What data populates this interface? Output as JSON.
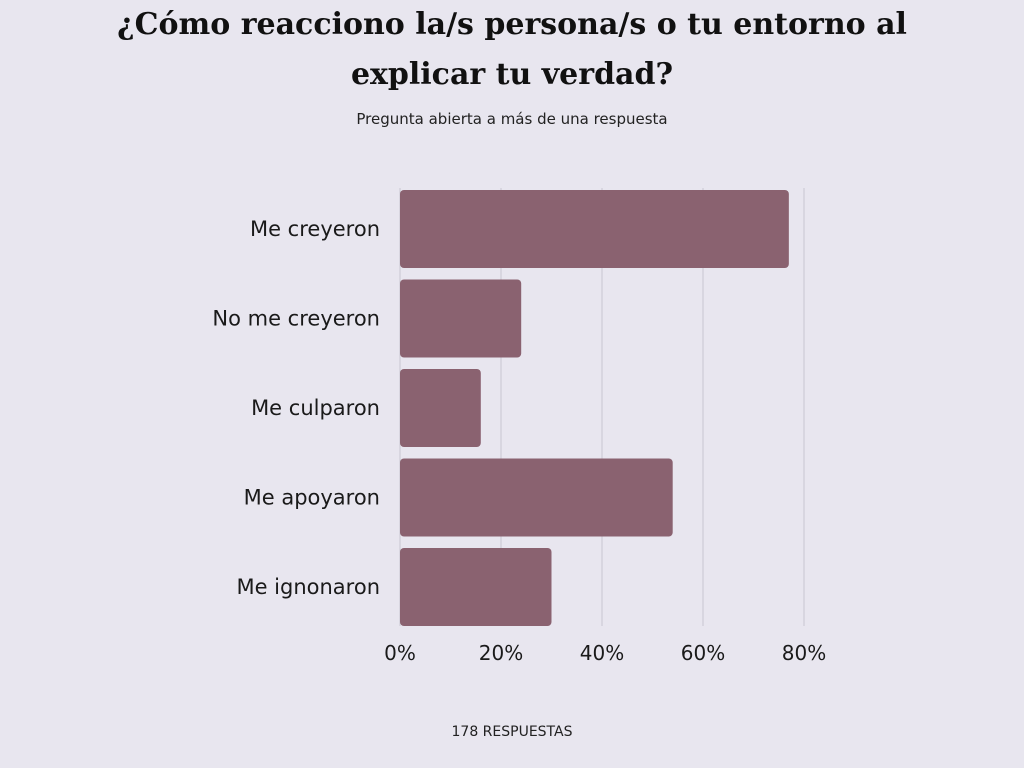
{
  "title": "¿Cómo reacciono la/s persona/s o tu entorno al explicar tu verdad?",
  "subtitle": "Pregunta abierta a más de una respuesta",
  "footer": "178 RESPUESTAS",
  "chart_data": {
    "type": "bar",
    "orientation": "horizontal",
    "title": "¿Cómo reacciono la/s persona/s o tu entorno al explicar tu verdad?",
    "subtitle": "Pregunta abierta a más de una respuesta",
    "categories": [
      "Me creyeron",
      "No me creyeron",
      "Me culparon",
      "Me apoyaron",
      "Me ignonaron"
    ],
    "values": [
      77,
      24,
      16,
      54,
      30
    ],
    "unit": "%",
    "xlim": [
      0,
      80
    ],
    "ticks": [
      0,
      20,
      40,
      60,
      80
    ],
    "tick_labels": [
      "0%",
      "20%",
      "40%",
      "60%",
      "80%"
    ],
    "grid": true,
    "legend": "none",
    "bar_color": "#8a6270",
    "grid_color": "#c9c6d0"
  }
}
